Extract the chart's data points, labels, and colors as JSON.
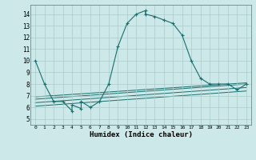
{
  "title": "",
  "xlabel": "Humidex (Indice chaleur)",
  "ylabel": "",
  "bg_color": "#cce8e8",
  "grid_color": "#aacccc",
  "line_color": "#1a6e6e",
  "xlim": [
    -0.5,
    23.5
  ],
  "ylim": [
    4.5,
    14.8
  ],
  "xticks": [
    0,
    1,
    2,
    3,
    4,
    5,
    6,
    7,
    8,
    9,
    10,
    11,
    12,
    13,
    14,
    15,
    16,
    17,
    18,
    19,
    20,
    21,
    22,
    23
  ],
  "yticks": [
    5,
    6,
    7,
    8,
    9,
    10,
    11,
    12,
    13,
    14
  ],
  "main_x": [
    0,
    1,
    2,
    3,
    4,
    4,
    5,
    5,
    6,
    7,
    8,
    9,
    10,
    11,
    12,
    12,
    13,
    14,
    15,
    16,
    17,
    18,
    19,
    20,
    21,
    22,
    23
  ],
  "main_y": [
    10,
    8,
    6.5,
    6.5,
    5.7,
    6.2,
    5.9,
    6.5,
    6.0,
    6.5,
    8.0,
    11.2,
    13.2,
    14.0,
    14.3,
    14.0,
    13.8,
    13.5,
    13.2,
    12.2,
    10.0,
    8.5,
    8.0,
    8.0,
    8.0,
    7.5,
    8.0
  ],
  "trend1_x": [
    0,
    23
  ],
  "trend1_y": [
    6.7,
    8.0
  ],
  "trend2_x": [
    0,
    23
  ],
  "trend2_y": [
    6.9,
    8.1
  ],
  "trend3_x": [
    0,
    23
  ],
  "trend3_y": [
    6.4,
    7.7
  ],
  "trend4_x": [
    0,
    23
  ],
  "trend4_y": [
    6.1,
    7.4
  ]
}
